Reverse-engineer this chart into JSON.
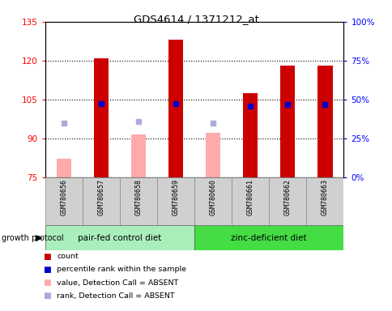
{
  "title": "GDS4614 / 1371212_at",
  "samples": [
    "GSM780656",
    "GSM780657",
    "GSM780658",
    "GSM780659",
    "GSM780660",
    "GSM780661",
    "GSM780662",
    "GSM780663"
  ],
  "count_values": [
    null,
    121.0,
    null,
    128.0,
    null,
    107.5,
    118.0,
    118.0
  ],
  "value_absent": [
    82.0,
    null,
    91.5,
    null,
    92.0,
    null,
    null,
    null
  ],
  "rank_absent": [
    96.0,
    null,
    96.5,
    null,
    96.0,
    null,
    null,
    null
  ],
  "percentile_present": [
    null,
    103.5,
    null,
    103.5,
    null,
    102.5,
    103.0,
    103.0
  ],
  "ylim": [
    75,
    135
  ],
  "y2lim": [
    0,
    100
  ],
  "yticks": [
    75,
    90,
    105,
    120,
    135
  ],
  "y2ticks": [
    0,
    25,
    50,
    75,
    100
  ],
  "group1_label": "pair-fed control diet",
  "group2_label": "zinc-deficient diet",
  "group1_color": "#aaeebb",
  "group2_color": "#44dd44",
  "bar_color_count": "#cc0000",
  "bar_color_absent": "#ffaaaa",
  "dot_color_rank_absent": "#aaaadd",
  "dot_color_pct_present": "#0000cc",
  "bar_width": 0.4,
  "legend_items": [
    {
      "color": "#cc0000",
      "label": "count"
    },
    {
      "color": "#0000cc",
      "label": "percentile rank within the sample"
    },
    {
      "color": "#ffaaaa",
      "label": "value, Detection Call = ABSENT"
    },
    {
      "color": "#aaaadd",
      "label": "rank, Detection Call = ABSENT"
    }
  ]
}
